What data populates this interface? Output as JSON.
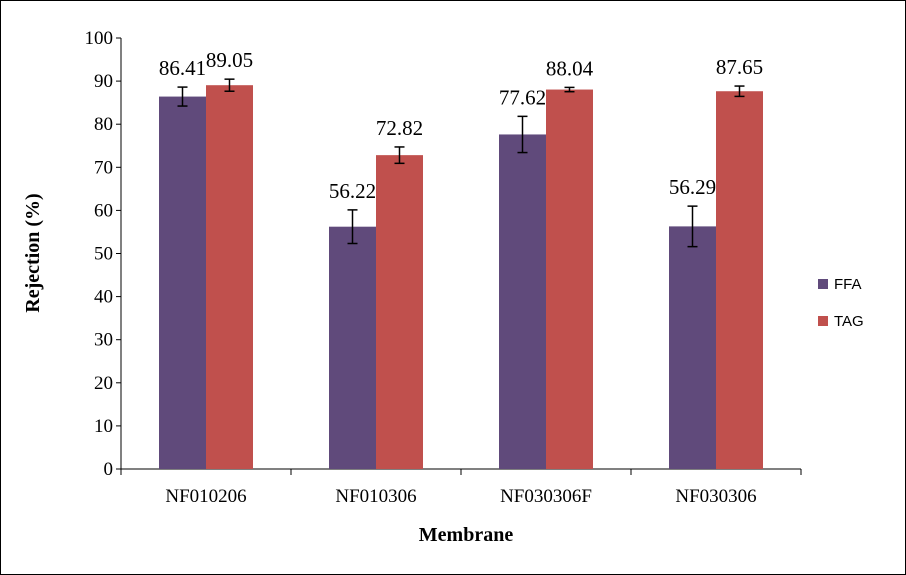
{
  "chart_data": {
    "type": "bar",
    "title": "",
    "xlabel": "Membrane",
    "ylabel": "Rejection (%)",
    "categories": [
      "NF010206",
      "NF010306",
      "NF030306F",
      "NF030306"
    ],
    "series": [
      {
        "name": "FFA",
        "color": "#604a7b",
        "values": [
          86.41,
          56.22,
          77.62,
          56.29
        ],
        "error": [
          2.2,
          3.9,
          4.2,
          4.7
        ]
      },
      {
        "name": "TAG",
        "color": "#c0504d",
        "values": [
          89.05,
          72.82,
          88.04,
          87.65
        ],
        "error": [
          1.4,
          1.9,
          0.5,
          1.2
        ]
      }
    ],
    "data_labels": [
      [
        "86.41",
        "56.22",
        "77.62",
        "56.29"
      ],
      [
        "89.05",
        "72.82",
        "88.04",
        "87.65"
      ]
    ],
    "ylim": [
      0,
      100
    ],
    "yticks": [
      0,
      10,
      20,
      30,
      40,
      50,
      60,
      70,
      80,
      90,
      100
    ],
    "grid": false,
    "legend_position": "right"
  }
}
